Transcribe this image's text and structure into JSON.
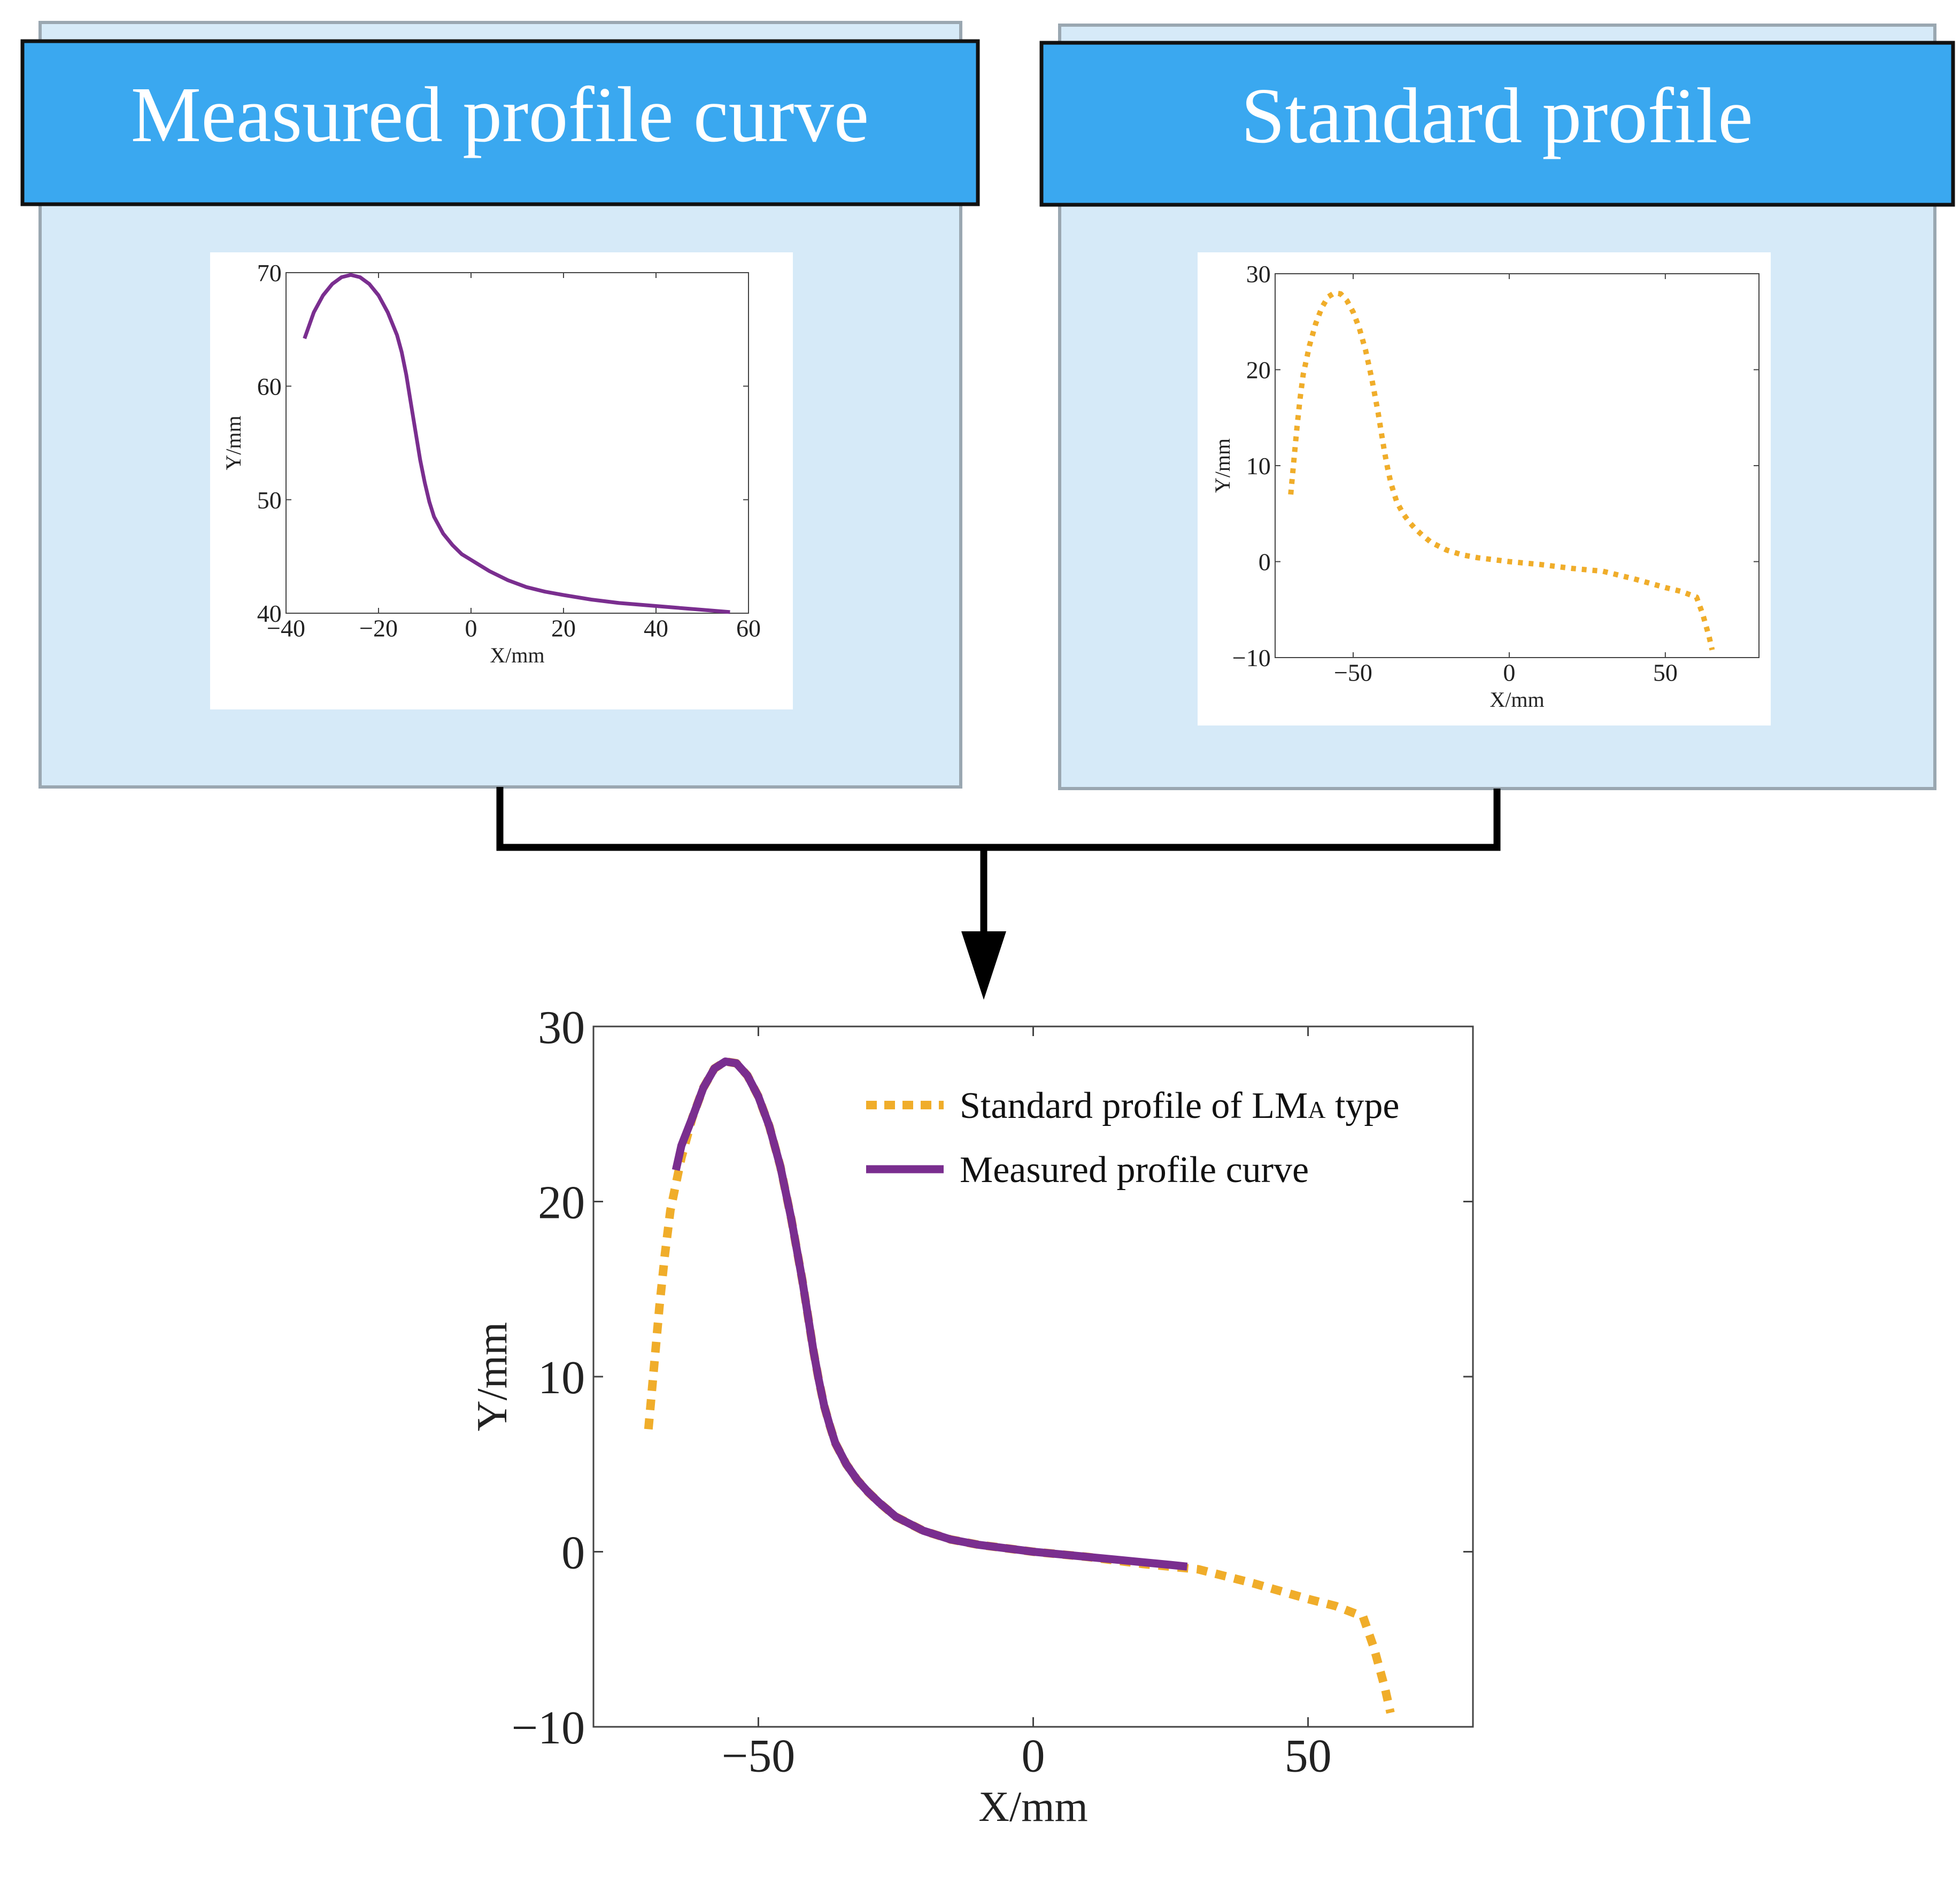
{
  "colors": {
    "panel_fill": "#d6eaf8",
    "panel_border": "#9aa7b1",
    "header_fill": "#3aa8f0",
    "header_border": "#111111",
    "header_text": "#ffffff",
    "connector": "#000000",
    "measured": "#7a2e8f",
    "standard": "#f0ad2a",
    "axis": "#444444"
  },
  "panels": {
    "left_title": "Measured profile curve",
    "right_title": "Standard profile"
  },
  "chart_data": [
    {
      "id": "measured",
      "type": "line",
      "xlabel": "X/mm",
      "ylabel": "Y/mm",
      "xlim": [
        -40,
        60
      ],
      "ylim": [
        40,
        70
      ],
      "xticks": [
        -40,
        -20,
        0,
        20,
        40,
        60
      ],
      "yticks": [
        40,
        50,
        60,
        70
      ],
      "series": [
        {
          "name": "Measured profile curve",
          "style": "solid",
          "color": "#7a2e8f",
          "x": [
            -36,
            -34,
            -32,
            -30,
            -28,
            -26,
            -24,
            -22,
            -20,
            -18,
            -16,
            -15,
            -14,
            -13,
            -12,
            -11,
            -10,
            -9,
            -8,
            -6,
            -4,
            -2,
            0,
            4,
            8,
            12,
            16,
            20,
            26,
            32,
            38,
            44,
            50,
            56
          ],
          "y": [
            64.2,
            66.5,
            68.0,
            69.0,
            69.6,
            69.8,
            69.6,
            69.0,
            68.0,
            66.5,
            64.5,
            63.0,
            61.0,
            58.5,
            56.0,
            53.5,
            51.5,
            49.8,
            48.5,
            47.0,
            46.0,
            45.2,
            44.7,
            43.7,
            42.9,
            42.3,
            41.9,
            41.6,
            41.2,
            40.9,
            40.7,
            40.5,
            40.3,
            40.1
          ]
        }
      ]
    },
    {
      "id": "standard",
      "type": "line",
      "xlabel": "X/mm",
      "ylabel": "Y/mm",
      "xlim": [
        -75,
        80
      ],
      "ylim": [
        -10,
        30
      ],
      "xticks": [
        -50,
        0,
        50
      ],
      "yticks": [
        -10,
        0,
        10,
        20,
        30
      ],
      "series": [
        {
          "name": "Standard profile",
          "style": "dotted",
          "color": "#f0ad2a",
          "x": [
            -70,
            -69,
            -68,
            -67,
            -66,
            -64,
            -62,
            -60,
            -58,
            -56,
            -54,
            -52,
            -50,
            -48,
            -46,
            -44,
            -42,
            -41,
            -40,
            -39,
            -38,
            -37,
            -36,
            -34,
            -32,
            -30,
            -28,
            -25,
            -20,
            -15,
            -10,
            -5,
            0,
            10,
            20,
            30,
            40,
            50,
            55,
            60,
            62,
            64,
            65
          ],
          "y": [
            7,
            10.5,
            14,
            17,
            19.5,
            22.5,
            24.8,
            26.5,
            27.6,
            28.0,
            27.9,
            27.2,
            26.0,
            24.3,
            22.0,
            19.0,
            15.5,
            13.5,
            11.5,
            9.8,
            8.3,
            7.2,
            6.2,
            5.0,
            4.1,
            3.4,
            2.8,
            2.0,
            1.2,
            0.7,
            0.4,
            0.2,
            0.0,
            -0.3,
            -0.7,
            -1.0,
            -1.8,
            -2.7,
            -3.1,
            -3.7,
            -5.5,
            -7.8,
            -9.2
          ]
        }
      ]
    },
    {
      "id": "comparison",
      "type": "line",
      "xlabel": "X/mm",
      "ylabel": "Y/mm",
      "xlim": [
        -80,
        80
      ],
      "ylim": [
        -10,
        30
      ],
      "xticks": [
        -50,
        0,
        50
      ],
      "yticks": [
        -10,
        0,
        10,
        20,
        30
      ],
      "legend_position": "top-right",
      "legend_1_main": "Standard profile of LM",
      "legend_1_sub": "A",
      "legend_1_tail": " type",
      "series": [
        {
          "name": "Standard profile of LMA type",
          "style": "dotted",
          "color": "#f0ad2a",
          "x": [
            -70,
            -69,
            -68,
            -67,
            -66,
            -64,
            -62,
            -60,
            -58,
            -56,
            -54,
            -52,
            -50,
            -48,
            -46,
            -44,
            -42,
            -41,
            -40,
            -39,
            -38,
            -37,
            -36,
            -34,
            -32,
            -30,
            -28,
            -25,
            -20,
            -15,
            -10,
            -5,
            0,
            10,
            20,
            30,
            40,
            50,
            55,
            60,
            62,
            64,
            65
          ],
          "y": [
            7,
            10.5,
            14,
            17,
            19.5,
            22.5,
            24.8,
            26.5,
            27.6,
            28.0,
            27.9,
            27.2,
            26.0,
            24.3,
            22.0,
            19.0,
            15.5,
            13.5,
            11.5,
            9.8,
            8.3,
            7.2,
            6.2,
            5.0,
            4.1,
            3.4,
            2.8,
            2.0,
            1.2,
            0.7,
            0.4,
            0.2,
            0.0,
            -0.3,
            -0.7,
            -1.0,
            -1.8,
            -2.7,
            -3.1,
            -3.7,
            -5.5,
            -7.8,
            -9.2
          ]
        },
        {
          "name": "Measured profile curve",
          "style": "solid",
          "color": "#7a2e8f",
          "x": [
            -65,
            -64,
            -62,
            -60,
            -58,
            -56,
            -54,
            -52,
            -50,
            -48,
            -46,
            -44,
            -42,
            -41,
            -40,
            -39,
            -38,
            -37,
            -36,
            -34,
            -32,
            -30,
            -28,
            -25,
            -20,
            -15,
            -10,
            -5,
            0,
            5,
            10,
            15,
            20,
            25,
            28
          ],
          "y": [
            21.8,
            23.2,
            24.8,
            26.5,
            27.6,
            28.0,
            27.9,
            27.2,
            26.0,
            24.3,
            22.0,
            19.0,
            15.5,
            13.5,
            11.5,
            9.8,
            8.3,
            7.2,
            6.2,
            5.0,
            4.1,
            3.4,
            2.8,
            2.0,
            1.2,
            0.7,
            0.4,
            0.2,
            0.0,
            -0.15,
            -0.3,
            -0.45,
            -0.6,
            -0.75,
            -0.85
          ]
        }
      ]
    }
  ]
}
